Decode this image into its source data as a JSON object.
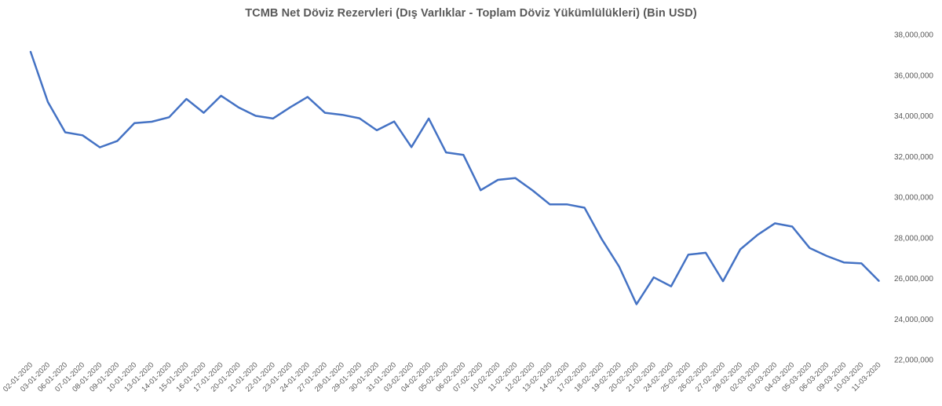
{
  "chart_data": {
    "type": "line",
    "title": "TCMB Net Döviz Rezervleri (Dış Varlıklar  - Toplam  Döviz Yükümlülükleri)  (Bin USD)",
    "xlabel": "",
    "ylabel": "",
    "ylim": [
      22000000,
      38000000
    ],
    "y_ticks": [
      {
        "value": 38000000,
        "label": "38,000,000"
      },
      {
        "value": 36000000,
        "label": "36,000,000"
      },
      {
        "value": 34000000,
        "label": "34,000,000"
      },
      {
        "value": 32000000,
        "label": "32,000,000"
      },
      {
        "value": 30000000,
        "label": "30,000,000"
      },
      {
        "value": 28000000,
        "label": "28,000,000"
      },
      {
        "value": 26000000,
        "label": "26,000,000"
      },
      {
        "value": 24000000,
        "label": "24,000,000"
      },
      {
        "value": 22000000,
        "label": "22,000,000"
      }
    ],
    "y_axis_position": "right",
    "grid": false,
    "legend": "none",
    "line_color": "#4472C4",
    "categories": [
      "02-01-2020",
      "03-01-2020",
      "06-01-2020",
      "07-01-2020",
      "08-01-2020",
      "09-01-2020",
      "10-01-2020",
      "13-01-2020",
      "14-01-2020",
      "15-01-2020",
      "16-01-2020",
      "17-01-2020",
      "20-01-2020",
      "21-01-2020",
      "22-01-2020",
      "23-01-2020",
      "24-01-2020",
      "27-01-2020",
      "28-01-2020",
      "29-01-2020",
      "30-01-2020",
      "31-01-2020",
      "03-02-2020",
      "04-02-2020",
      "05-02-2020",
      "06-02-2020",
      "07-02-2020",
      "10-02-2020",
      "11-02-2020",
      "12-02-2020",
      "13-02-2020",
      "14-02-2020",
      "17-02-2020",
      "18-02-2020",
      "19-02-2020",
      "20-02-2020",
      "21-02-2020",
      "24-02-2020",
      "25-02-2020",
      "26-02-2020",
      "27-02-2020",
      "28-02-2020",
      "02-03-2020",
      "03-03-2020",
      "04-03-2020",
      "05-03-2020",
      "06-03-2020",
      "09-03-2020",
      "10-03-2020",
      "11-03-2020"
    ],
    "values": [
      37150000,
      34680000,
      33190000,
      33040000,
      32450000,
      32760000,
      33640000,
      33710000,
      33930000,
      34830000,
      34150000,
      34990000,
      34420000,
      34000000,
      33870000,
      34420000,
      34930000,
      34150000,
      34050000,
      33880000,
      33290000,
      33720000,
      32460000,
      33870000,
      32200000,
      32080000,
      30340000,
      30850000,
      30940000,
      30330000,
      29640000,
      29640000,
      29480000,
      27930000,
      26580000,
      24730000,
      26050000,
      25610000,
      27170000,
      27260000,
      25860000,
      27430000,
      28140000,
      28710000,
      28550000,
      27500000,
      27100000,
      26780000,
      26740000,
      25880000
    ]
  }
}
